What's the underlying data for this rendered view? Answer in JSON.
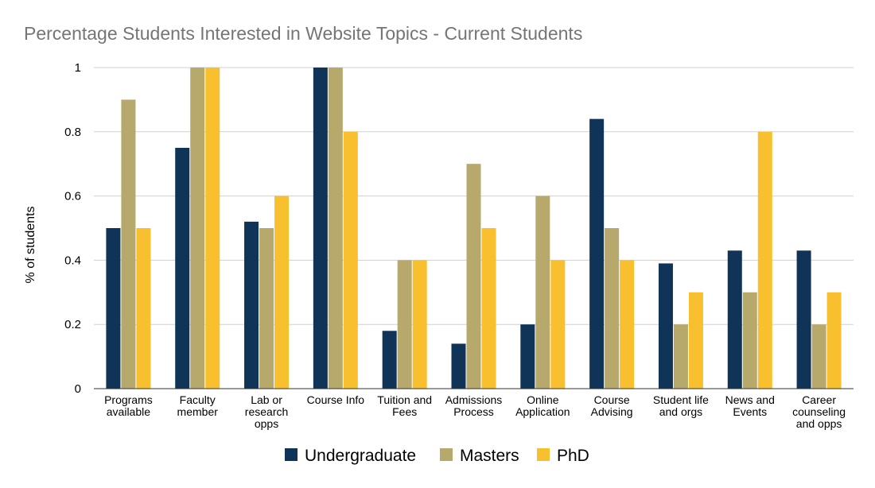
{
  "chart_data": {
    "type": "bar",
    "title": "Percentage Students Interested in Website Topics - Current Students",
    "xlabel": "",
    "ylabel": "% of students",
    "ylim": [
      0,
      1
    ],
    "yticks": [
      "0",
      "0.2",
      "0.4",
      "0.6",
      "0.8",
      "1"
    ],
    "grid": true,
    "legend_position": "bottom",
    "categories": [
      [
        "Programs",
        "available"
      ],
      [
        "Faculty",
        "member"
      ],
      [
        "Lab or",
        "research",
        "opps"
      ],
      [
        "Course Info"
      ],
      [
        "Tuition and",
        "Fees"
      ],
      [
        "Admissions",
        "Process"
      ],
      [
        "Online",
        "Application"
      ],
      [
        "Course",
        "Advising"
      ],
      [
        "Student life",
        "and orgs"
      ],
      [
        "News and",
        "Events"
      ],
      [
        "Career",
        "counseling",
        "and opps"
      ]
    ],
    "series": [
      {
        "name": "Undergraduate",
        "color": "#0f3457",
        "values": [
          0.5,
          0.75,
          0.52,
          1.0,
          0.18,
          0.14,
          0.2,
          0.84,
          0.39,
          0.43,
          0.43
        ]
      },
      {
        "name": "Masters",
        "color": "#b7a86c",
        "values": [
          0.9,
          1.0,
          0.5,
          1.0,
          0.4,
          0.7,
          0.6,
          0.5,
          0.2,
          0.3,
          0.2
        ]
      },
      {
        "name": "PhD",
        "color": "#f8bf2e",
        "values": [
          0.5,
          1.0,
          0.6,
          0.8,
          0.4,
          0.5,
          0.4,
          0.4,
          0.3,
          0.8,
          0.3
        ]
      }
    ]
  }
}
